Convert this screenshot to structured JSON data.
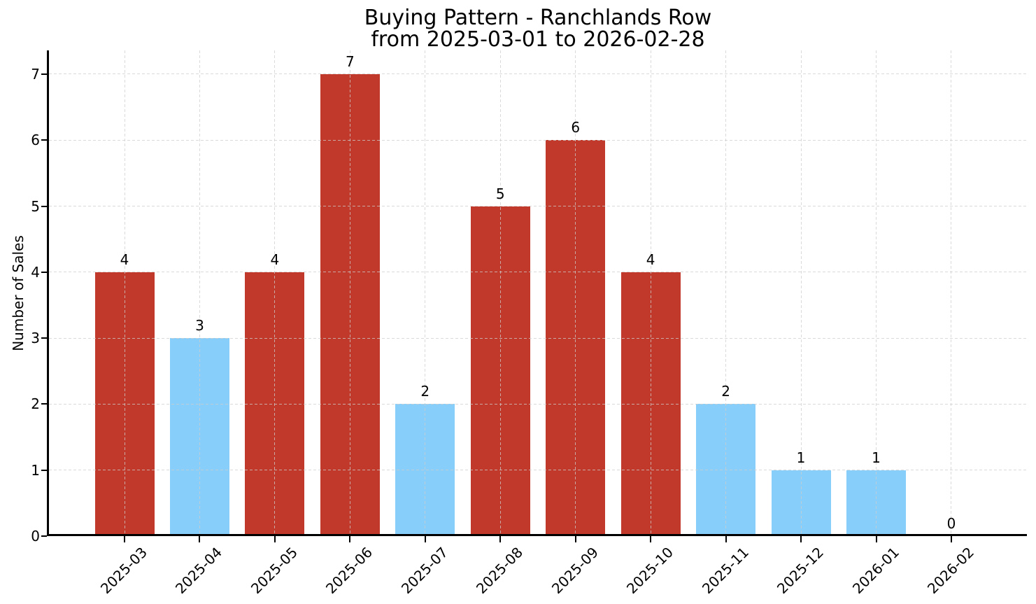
{
  "title": {
    "line1": "Buying Pattern - Ranchlands Row",
    "line2": "from 2025-03-01 to 2026-02-28"
  },
  "colors": {
    "red_bar": "#C0392B",
    "blue_bar": "#87CEFA",
    "axis": "#000000",
    "grid": "#CDCDCD",
    "background": "#FFFFFF"
  },
  "chart_data": {
    "type": "bar",
    "title": "Buying Pattern - Ranchlands Row\nfrom 2025-03-01 to 2026-02-28",
    "xlabel": "",
    "ylabel": "Number of Sales",
    "categories": [
      "2025-03",
      "2025-04",
      "2025-05",
      "2025-06",
      "2025-07",
      "2025-08",
      "2025-09",
      "2025-10",
      "2025-11",
      "2025-12",
      "2026-01",
      "2026-02"
    ],
    "values": [
      4,
      3,
      4,
      7,
      2,
      5,
      6,
      4,
      2,
      1,
      1,
      0
    ],
    "value_labels": [
      "4",
      "3",
      "4",
      "7",
      "2",
      "5",
      "6",
      "4",
      "2",
      "1",
      "1",
      "0"
    ],
    "bar_colors": [
      "#C0392B",
      "#87CEFA",
      "#C0392B",
      "#C0392B",
      "#87CEFA",
      "#C0392B",
      "#C0392B",
      "#C0392B",
      "#87CEFA",
      "#87CEFA",
      "#87CEFA",
      null
    ],
    "yticks": [
      0,
      1,
      2,
      3,
      4,
      5,
      6,
      7
    ],
    "ylim": [
      0,
      7.36
    ],
    "grid": {
      "style": "dashed",
      "color": "#CDCDCD",
      "over_bars": true
    },
    "legend": "none",
    "x_tick_rotation_deg": 45
  }
}
